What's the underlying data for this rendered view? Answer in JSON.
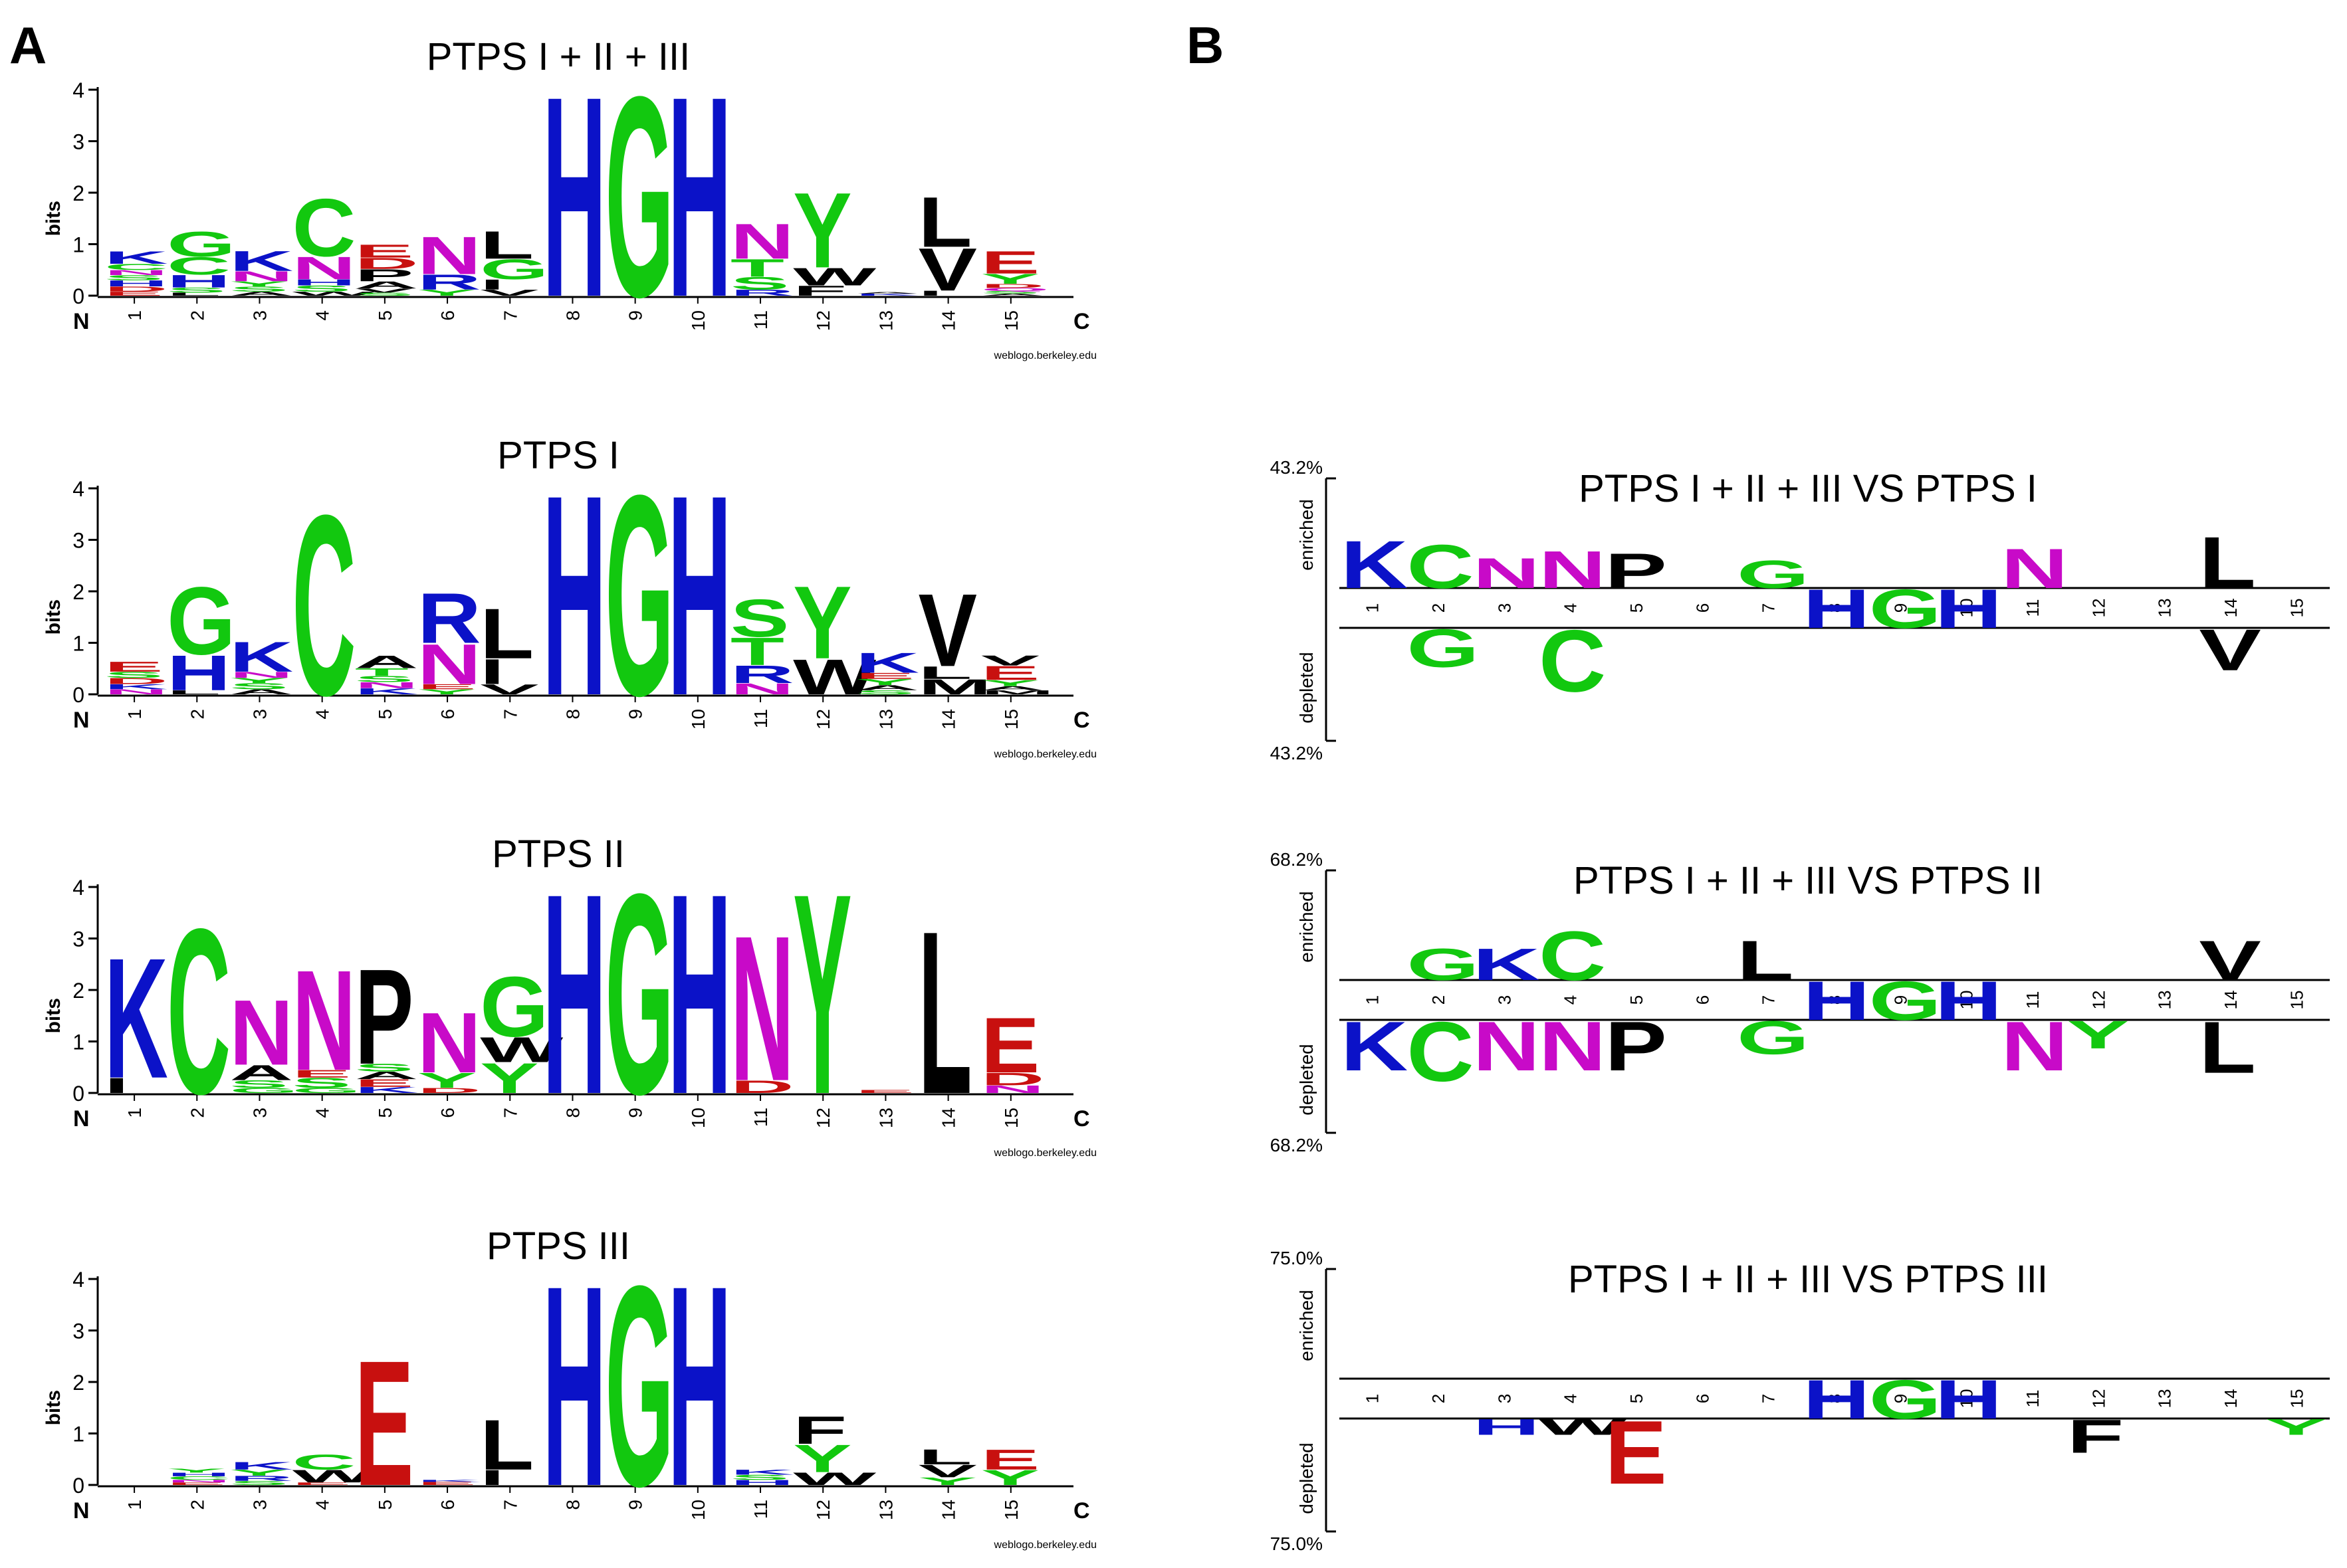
{
  "figure": {
    "panel_letters": [
      "A",
      "B"
    ],
    "residue_colors": {
      "blue": "#0b12c8",
      "green": "#12c80f",
      "magenta": "#c80ac8",
      "black": "#000000",
      "red": "#c8100f"
    }
  },
  "chart_data": [
    {
      "type": "sequence-logo",
      "title": "PTPS I + II + III",
      "ylabel": "bits",
      "ylim": [
        0,
        4
      ],
      "yticks": [
        "0",
        "1",
        "2",
        "3",
        "4"
      ],
      "start_label": "N",
      "end_label": "C",
      "positions": [
        "1",
        "2",
        "3",
        "4",
        "5",
        "6",
        "7",
        "8",
        "9",
        "10",
        "11",
        "12",
        "13",
        "14",
        "15"
      ],
      "credit": "weblogo.berkeley.edu",
      "columns": [
        [
          [
            "E",
            0.08
          ],
          [
            "D",
            0.1
          ],
          [
            "H",
            0.12
          ],
          [
            "S",
            0.1
          ],
          [
            "N",
            0.1
          ],
          [
            "C",
            0.12
          ],
          [
            "K",
            0.25
          ]
        ],
        [
          [
            "L",
            0.06
          ],
          [
            "S",
            0.1
          ],
          [
            "H",
            0.25
          ],
          [
            "C",
            0.35
          ],
          [
            "G",
            0.5
          ]
        ],
        [
          [
            "A",
            0.08
          ],
          [
            "S",
            0.1
          ],
          [
            "Y",
            0.1
          ],
          [
            "N",
            0.2
          ],
          [
            "K",
            0.4
          ]
        ],
        [
          [
            "W",
            0.08
          ],
          [
            "S",
            0.12
          ],
          [
            "H",
            0.12
          ],
          [
            "N",
            0.45
          ],
          [
            "C",
            1.15
          ]
        ],
        [
          [
            "S",
            0.06
          ],
          [
            "V",
            0.08
          ],
          [
            "A",
            0.14
          ],
          [
            "P",
            0.24
          ],
          [
            "D",
            0.22
          ],
          [
            "E",
            0.26
          ]
        ],
        [
          [
            "Y",
            0.12
          ],
          [
            "R",
            0.3
          ],
          [
            "N",
            0.75
          ]
        ],
        [
          [
            "V",
            0.12
          ],
          [
            "I",
            0.2
          ],
          [
            "G",
            0.4
          ],
          [
            "L",
            0.55
          ]
        ],
        [
          [
            "H",
            4.0
          ]
        ],
        [
          [
            "G",
            4.0
          ]
        ],
        [
          [
            "H",
            4.0
          ]
        ],
        [
          [
            "R",
            0.12
          ],
          [
            "S",
            0.25
          ],
          [
            "T",
            0.35
          ],
          [
            "N",
            0.7
          ]
        ],
        [
          [
            "F",
            0.2
          ],
          [
            "W",
            0.35
          ],
          [
            "Y",
            1.5
          ]
        ],
        [
          [
            "K",
            0.04
          ],
          [
            "A",
            0.03
          ]
        ],
        [
          [
            "I",
            0.1
          ],
          [
            "V",
            0.85
          ],
          [
            "L",
            1.0
          ]
        ],
        [
          [
            "A",
            0.04
          ],
          [
            "S",
            0.05
          ],
          [
            "Q",
            0.06
          ],
          [
            "D",
            0.08
          ],
          [
            "Y",
            0.2
          ],
          [
            "E",
            0.45
          ]
        ]
      ]
    },
    {
      "type": "sequence-logo",
      "title": "PTPS I",
      "ylabel": "bits",
      "ylim": [
        0,
        4
      ],
      "yticks": [
        "0",
        "1",
        "2",
        "3",
        "4"
      ],
      "start_label": "N",
      "end_label": "C",
      "positions": [
        "1",
        "2",
        "3",
        "4",
        "5",
        "6",
        "7",
        "8",
        "9",
        "10",
        "11",
        "12",
        "13",
        "14",
        "15"
      ],
      "credit": "weblogo.berkeley.edu",
      "columns": [
        [
          [
            "N",
            0.1
          ],
          [
            "K",
            0.1
          ],
          [
            "D",
            0.12
          ],
          [
            "S",
            0.12
          ],
          [
            "E",
            0.2
          ]
        ],
        [
          [
            "L",
            0.08
          ],
          [
            "H",
            0.7
          ],
          [
            "G",
            1.35
          ]
        ],
        [
          [
            "A",
            0.1
          ],
          [
            "S",
            0.12
          ],
          [
            "Y",
            0.1
          ],
          [
            "N",
            0.12
          ],
          [
            "K",
            0.6
          ]
        ],
        [
          [
            "C",
            3.6
          ]
        ],
        [
          [
            "K",
            0.12
          ],
          [
            "N",
            0.12
          ],
          [
            "S",
            0.12
          ],
          [
            "T",
            0.15
          ],
          [
            "A",
            0.25
          ]
        ],
        [
          [
            "Y",
            0.1
          ],
          [
            "E",
            0.1
          ],
          [
            "N",
            0.8
          ],
          [
            "R",
            1.0
          ]
        ],
        [
          [
            "V",
            0.2
          ],
          [
            "I",
            0.5
          ],
          [
            "L",
            1.0
          ]
        ],
        [
          [
            "H",
            4.0
          ]
        ],
        [
          [
            "G",
            4.0
          ]
        ],
        [
          [
            "H",
            4.0
          ]
        ],
        [
          [
            "N",
            0.22
          ],
          [
            "R",
            0.35
          ],
          [
            "T",
            0.55
          ],
          [
            "S",
            0.75
          ]
        ],
        [
          [
            "W",
            0.7
          ],
          [
            "Y",
            1.45
          ]
        ],
        [
          [
            "S",
            0.08
          ],
          [
            "A",
            0.1
          ],
          [
            "Y",
            0.12
          ],
          [
            "E",
            0.12
          ],
          [
            "K",
            0.4
          ]
        ],
        [
          [
            "M",
            0.3
          ],
          [
            "L",
            0.25
          ],
          [
            "V",
            1.45
          ]
        ],
        [
          [
            "M",
            0.08
          ],
          [
            "A",
            0.08
          ],
          [
            "Y",
            0.12
          ],
          [
            "E",
            0.28
          ],
          [
            "V",
            0.2
          ]
        ]
      ]
    },
    {
      "type": "sequence-logo",
      "title": "PTPS II",
      "ylabel": "bits",
      "ylim": [
        0,
        4
      ],
      "yticks": [
        "0",
        "1",
        "2",
        "3",
        "4"
      ],
      "start_label": "N",
      "end_label": "C",
      "positions": [
        "1",
        "2",
        "3",
        "4",
        "5",
        "6",
        "7",
        "8",
        "9",
        "10",
        "11",
        "12",
        "13",
        "14",
        "15"
      ],
      "credit": "weblogo.berkeley.edu",
      "columns": [
        [
          [
            "I",
            0.3
          ],
          [
            "K",
            2.4
          ]
        ],
        [
          [
            "C",
            3.3
          ]
        ],
        [
          [
            "G",
            0.1
          ],
          [
            "S",
            0.15
          ],
          [
            "A",
            0.3
          ],
          [
            "N",
            1.3
          ]
        ],
        [
          [
            "G",
            0.1
          ],
          [
            "S",
            0.2
          ],
          [
            "E",
            0.15
          ],
          [
            "N",
            2.0
          ]
        ],
        [
          [
            "K",
            0.12
          ],
          [
            "E",
            0.15
          ],
          [
            "A",
            0.15
          ],
          [
            "S",
            0.15
          ],
          [
            "P",
            1.9
          ]
        ],
        [
          [
            "D",
            0.1
          ],
          [
            "Y",
            0.3
          ],
          [
            "N",
            1.2
          ]
        ],
        [
          [
            "Y",
            0.6
          ],
          [
            "W",
            0.5
          ],
          [
            "G",
            1.2
          ]
        ],
        [
          [
            "H",
            4.0
          ]
        ],
        [
          [
            "G",
            4.0
          ]
        ],
        [
          [
            "H",
            4.0
          ]
        ],
        [
          [
            "D",
            0.25
          ],
          [
            "N",
            2.9
          ]
        ],
        [
          [
            "Y",
            4.0
          ]
        ],
        [
          [
            "E",
            0.06
          ]
        ],
        [
          [
            "L",
            3.25
          ]
        ],
        [
          [
            "N",
            0.15
          ],
          [
            "D",
            0.25
          ],
          [
            "E",
            1.1
          ]
        ]
      ]
    },
    {
      "type": "sequence-logo",
      "title": "PTPS III",
      "ylabel": "bits",
      "ylim": [
        0,
        4
      ],
      "yticks": [
        "0",
        "1",
        "2",
        "3",
        "4"
      ],
      "start_label": "N",
      "end_label": "C",
      "positions": [
        "1",
        "2",
        "3",
        "4",
        "5",
        "6",
        "7",
        "8",
        "9",
        "10",
        "11",
        "12",
        "13",
        "14",
        "15"
      ],
      "credit": "weblogo.berkeley.edu",
      "columns": [
        [],
        [
          [
            "E",
            0.05
          ],
          [
            "N",
            0.05
          ],
          [
            "C",
            0.07
          ],
          [
            "H",
            0.07
          ],
          [
            "Y",
            0.08
          ]
        ],
        [
          [
            "S",
            0.08
          ],
          [
            "R",
            0.1
          ],
          [
            "Y",
            0.12
          ],
          [
            "K",
            0.15
          ]
        ],
        [
          [
            "E",
            0.05
          ],
          [
            "W",
            0.25
          ],
          [
            "C",
            0.3
          ]
        ],
        [
          [
            "E",
            2.5
          ]
        ],
        [
          [
            "E",
            0.06
          ],
          [
            "K",
            0.04
          ]
        ],
        [
          [
            "I",
            0.3
          ],
          [
            "L",
            1.0
          ]
        ],
        [
          [
            "H",
            4.0
          ]
        ],
        [
          [
            "G",
            4.0
          ]
        ],
        [
          [
            "H",
            4.0
          ]
        ],
        [
          [
            "H",
            0.1
          ],
          [
            "S",
            0.1
          ],
          [
            "K",
            0.1
          ]
        ],
        [
          [
            "W",
            0.25
          ],
          [
            "Y",
            0.55
          ],
          [
            "F",
            0.55
          ]
        ],
        [],
        [
          [
            "Y",
            0.15
          ],
          [
            "V",
            0.25
          ],
          [
            "L",
            0.3
          ]
        ],
        [
          [
            "Y",
            0.3
          ],
          [
            "E",
            0.4
          ]
        ]
      ]
    },
    {
      "type": "two-sample-logo",
      "title": "PTPS I + II + III VS PTPS I",
      "enriched_label": "enriched",
      "depleted_label": "depleted",
      "scale_top": "43.2%",
      "scale_bottom": "43.2%",
      "positions": [
        "1",
        "2",
        "3",
        "4",
        "5",
        "6",
        "7",
        "8",
        "9",
        "10",
        "11",
        "12",
        "13",
        "14",
        "15"
      ],
      "enriched": [
        [
          "K",
          0.6
        ],
        [
          "C",
          0.55
        ],
        [
          "N",
          0.38
        ],
        [
          "N",
          0.47
        ],
        [
          "P",
          0.44
        ],
        [],
        [
          "G",
          0.35
        ],
        [],
        [],
        [],
        [
          "N",
          0.5
        ],
        [],
        [],
        [
          "L",
          0.65
        ],
        []
      ],
      "depleted": [
        [],
        [
          "G",
          0.48
        ],
        [],
        [
          "C",
          0.78
        ],
        [],
        [],
        [],
        [],
        [],
        [],
        [],
        [],
        [],
        [
          "V",
          0.52
        ],
        []
      ],
      "conserved": [
        [],
        [],
        [],
        [],
        [],
        [],
        [],
        [
          "H",
          0.35
        ],
        [
          "G",
          0.35
        ],
        [
          "H",
          0.35
        ],
        [],
        [],
        [],
        [],
        []
      ]
    },
    {
      "type": "two-sample-logo",
      "title": "PTPS I + II + III VS PTPS II",
      "enriched_label": "enriched",
      "depleted_label": "depleted",
      "scale_top": "68.2%",
      "scale_bottom": "68.2%",
      "positions": [
        "1",
        "2",
        "3",
        "4",
        "5",
        "6",
        "7",
        "8",
        "9",
        "10",
        "11",
        "12",
        "13",
        "14",
        "15"
      ],
      "enriched": [
        [],
        [
          "G",
          0.4
        ],
        [
          "K",
          0.4
        ],
        [
          "C",
          0.62
        ],
        [],
        [],
        [
          "L",
          0.5
        ],
        [],
        [],
        [],
        [],
        [],
        [],
        [
          "V",
          0.5
        ],
        []
      ],
      "depleted": [
        [
          "K",
          0.62
        ],
        [
          "C",
          0.75
        ],
        [
          "N",
          0.62
        ],
        [
          "N",
          0.62
        ],
        [
          "P",
          0.62
        ],
        [],
        [
          "G",
          0.42
        ],
        [],
        [],
        [],
        [
          "N",
          0.62
        ],
        [
          "Y",
          0.35
        ],
        [],
        [
          "L",
          0.65
        ],
        []
      ],
      "conserved": [
        [],
        [],
        [],
        [],
        [],
        [],
        [],
        [
          "H",
          0.35
        ],
        [
          "G",
          0.35
        ],
        [
          "H",
          0.35
        ],
        [],
        [],
        [],
        [],
        []
      ]
    },
    {
      "type": "two-sample-logo",
      "title": "PTPS I + II + III VS PTPS III",
      "enriched_label": "enriched",
      "depleted_label": "depleted",
      "scale_top": "75.0%",
      "scale_bottom": "75.0%",
      "positions": [
        "1",
        "2",
        "3",
        "4",
        "5",
        "6",
        "7",
        "8",
        "9",
        "10",
        "11",
        "12",
        "13",
        "14",
        "15"
      ],
      "enriched": [
        [],
        [],
        [],
        [],
        [],
        [],
        [],
        [],
        [],
        [],
        [],
        [],
        [],
        [],
        []
      ],
      "depleted": [
        [],
        [],
        [
          "H",
          0.2
        ],
        [
          "W",
          0.2
        ],
        [
          "E",
          0.8
        ],
        [],
        [],
        [],
        [],
        [],
        [],
        [
          "F",
          0.42
        ],
        [],
        [],
        [
          "Y",
          0.2
        ]
      ],
      "conserved": [
        [],
        [],
        [],
        [],
        [],
        [],
        [],
        [
          "H",
          0.35
        ],
        [
          "G",
          0.35
        ],
        [
          "H",
          0.35
        ],
        [],
        [],
        [],
        [],
        []
      ]
    }
  ]
}
